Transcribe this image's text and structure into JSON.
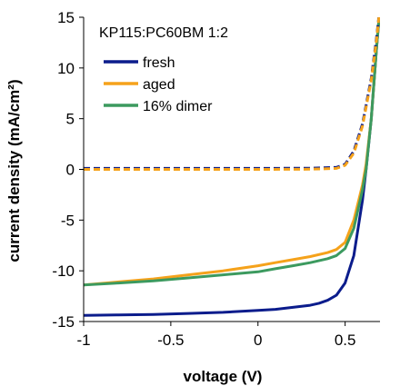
{
  "chart_data": {
    "type": "line",
    "title": "",
    "annotation": "KP115:PC60BM 1:2",
    "xlabel": "voltage (V)",
    "ylabel": "current density (mA/cm²)",
    "xlim": [
      -1,
      0.7
    ],
    "ylim": [
      -15,
      15
    ],
    "xticks": [
      -1,
      -0.5,
      0,
      0.5
    ],
    "xtick_labels": [
      "-1",
      "-0.5",
      "0",
      "0.5"
    ],
    "yticks": [
      -15,
      -10,
      -5,
      0,
      5,
      10,
      15
    ],
    "ytick_labels": [
      "-15",
      "-10",
      "-5",
      "0",
      "5",
      "10",
      "15"
    ],
    "grid": false,
    "legend_position": "top-left",
    "legend": [
      "fresh",
      "aged",
      "16% dimer"
    ],
    "series": [
      {
        "name": "fresh",
        "condition": "light",
        "style": "solid",
        "color": "#0b1c8c",
        "x": [
          -1.0,
          -0.8,
          -0.6,
          -0.4,
          -0.2,
          0.0,
          0.1,
          0.2,
          0.3,
          0.35,
          0.4,
          0.45,
          0.5,
          0.55,
          0.6,
          0.62,
          0.65,
          0.68,
          0.7
        ],
        "y": [
          -14.4,
          -14.35,
          -14.3,
          -14.2,
          -14.1,
          -13.9,
          -13.8,
          -13.6,
          -13.4,
          -13.2,
          -12.9,
          -12.4,
          -11.2,
          -8.5,
          -3.0,
          0.0,
          5.0,
          12.0,
          16.0
        ]
      },
      {
        "name": "aged",
        "condition": "light",
        "style": "solid",
        "color": "#f5a21b",
        "x": [
          -1.0,
          -0.8,
          -0.6,
          -0.4,
          -0.2,
          0.0,
          0.1,
          0.2,
          0.3,
          0.4,
          0.45,
          0.5,
          0.55,
          0.6,
          0.62,
          0.65,
          0.68,
          0.7
        ],
        "y": [
          -11.4,
          -11.1,
          -10.8,
          -10.4,
          -10.0,
          -9.5,
          -9.2,
          -8.9,
          -8.6,
          -8.2,
          -7.9,
          -7.2,
          -5.0,
          -1.5,
          0.5,
          5.0,
          12.0,
          16.0
        ]
      },
      {
        "name": "16% dimer",
        "condition": "light",
        "style": "solid",
        "color": "#3c9a5f",
        "x": [
          -1.0,
          -0.8,
          -0.6,
          -0.4,
          -0.2,
          0.0,
          0.1,
          0.2,
          0.3,
          0.4,
          0.45,
          0.5,
          0.55,
          0.6,
          0.62,
          0.65,
          0.68,
          0.7
        ],
        "y": [
          -11.4,
          -11.2,
          -11.0,
          -10.7,
          -10.4,
          -10.1,
          -9.8,
          -9.5,
          -9.2,
          -8.8,
          -8.5,
          -7.8,
          -5.8,
          -2.0,
          0.0,
          5.0,
          12.0,
          16.0
        ]
      },
      {
        "name": "fresh",
        "condition": "dark",
        "style": "dashed",
        "color": "#0b1c8c",
        "x": [
          -1.0,
          -0.5,
          0.0,
          0.3,
          0.45,
          0.5,
          0.55,
          0.6,
          0.65,
          0.68,
          0.7
        ],
        "y": [
          0.1,
          0.1,
          0.1,
          0.12,
          0.2,
          0.5,
          1.8,
          4.5,
          9.0,
          13.0,
          16.0
        ]
      },
      {
        "name": "aged",
        "condition": "dark",
        "style": "dashed",
        "color": "#f5a21b",
        "x": [
          -1.0,
          -0.5,
          0.0,
          0.3,
          0.45,
          0.5,
          0.55,
          0.6,
          0.65,
          0.68,
          0.7
        ],
        "y": [
          0.0,
          0.0,
          0.0,
          0.02,
          0.1,
          0.4,
          1.6,
          4.3,
          8.8,
          12.8,
          16.0
        ]
      }
    ]
  }
}
